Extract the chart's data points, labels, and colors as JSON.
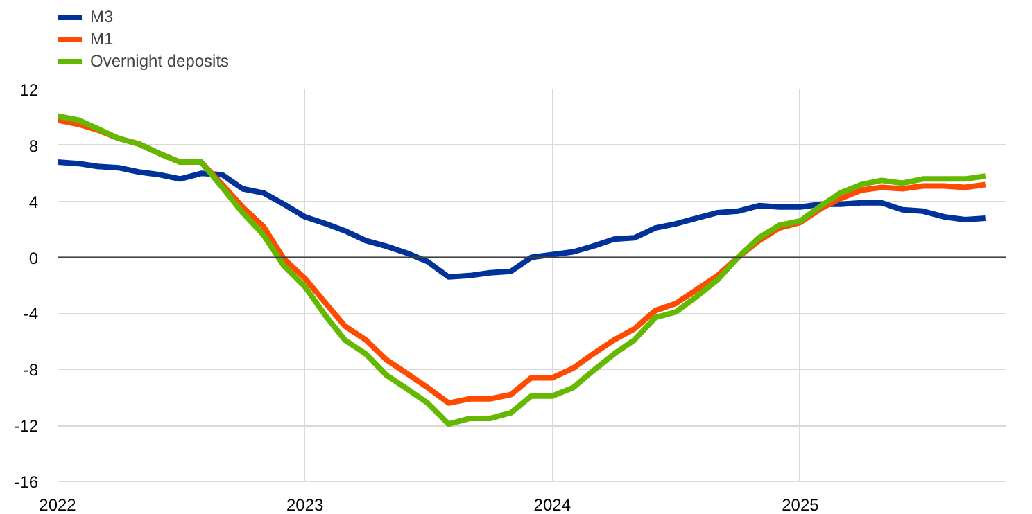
{
  "chart_data": {
    "type": "line",
    "x": [
      "2022-01",
      "2022-02",
      "2022-03",
      "2022-04",
      "2022-05",
      "2022-06",
      "2022-07",
      "2022-08",
      "2022-09",
      "2022-10",
      "2022-11",
      "2022-12",
      "2023-01",
      "2023-02",
      "2023-03",
      "2023-04",
      "2023-05",
      "2023-06",
      "2023-07",
      "2023-08",
      "2023-09",
      "2023-10",
      "2023-11",
      "2023-12",
      "2024-01",
      "2024-02",
      "2024-03",
      "2024-04",
      "2024-05",
      "2024-06",
      "2024-07",
      "2024-08",
      "2024-09",
      "2024-10",
      "2024-11",
      "2024-12",
      "2025-01",
      "2025-02",
      "2025-03",
      "2025-04",
      "2025-05",
      "2025-06",
      "2025-07",
      "2025-08",
      "2025-09",
      "2025-10"
    ],
    "series": [
      {
        "name": "M3",
        "color": "#003299",
        "values": [
          6.8,
          6.7,
          6.5,
          6.4,
          6.1,
          5.9,
          5.6,
          6.0,
          5.9,
          4.9,
          4.6,
          3.8,
          2.9,
          2.4,
          1.9,
          1.2,
          0.8,
          0.3,
          -0.3,
          -1.4,
          -1.3,
          -1.1,
          -1.0,
          0.0,
          0.2,
          0.4,
          0.8,
          1.3,
          1.4,
          2.1,
          2.4,
          2.8,
          3.2,
          3.3,
          3.7,
          3.6,
          3.6,
          3.8,
          3.8,
          3.9,
          3.9,
          3.4,
          3.3,
          2.9,
          2.7,
          2.8
        ]
      },
      {
        "name": "M1",
        "color": "#ff4b00",
        "values": [
          9.8,
          9.5,
          9.1,
          8.5,
          8.1,
          7.4,
          6.8,
          6.8,
          5.2,
          3.6,
          2.2,
          -0.1,
          -1.5,
          -3.3,
          -4.9,
          -5.9,
          -7.3,
          -8.3,
          -9.3,
          -10.4,
          -10.1,
          -10.1,
          -9.8,
          -8.6,
          -8.6,
          -7.9,
          -6.9,
          -5.9,
          -5.1,
          -3.8,
          -3.3,
          -2.3,
          -1.3,
          0.0,
          1.2,
          2.1,
          2.5,
          3.5,
          4.2,
          4.8,
          5.0,
          4.9,
          5.1,
          5.1,
          5.0,
          5.2
        ]
      },
      {
        "name": "Overnight deposits",
        "color": "#65b800",
        "values": [
          10.1,
          9.8,
          9.2,
          8.5,
          8.1,
          7.4,
          6.8,
          6.8,
          5.0,
          3.2,
          1.6,
          -0.6,
          -2.1,
          -4.2,
          -5.9,
          -6.9,
          -8.4,
          -9.4,
          -10.4,
          -11.9,
          -11.5,
          -11.5,
          -11.1,
          -9.9,
          -9.9,
          -9.3,
          -8.1,
          -6.9,
          -5.9,
          -4.3,
          -3.9,
          -2.8,
          -1.6,
          0.0,
          1.4,
          2.3,
          2.6,
          3.7,
          4.6,
          5.2,
          5.5,
          5.3,
          5.6,
          5.6,
          5.6,
          5.8
        ]
      }
    ],
    "xlim": [
      "2022-01",
      "2025-11"
    ],
    "xticks": [
      {
        "value": "2022-01",
        "label": "2022"
      },
      {
        "value": "2023-01",
        "label": "2023"
      },
      {
        "value": "2024-01",
        "label": "2024"
      },
      {
        "value": "2025-01",
        "label": "2025"
      }
    ],
    "ylim": [
      -16,
      12
    ],
    "yticks": [
      -16,
      -12,
      -8,
      -4,
      0,
      4,
      8,
      12
    ],
    "ref_lines": [
      {
        "axis": "y",
        "value": 0,
        "color": "#404040"
      }
    ],
    "grid": true,
    "legend": "top left",
    "line_style": "solid",
    "marker": "none"
  }
}
